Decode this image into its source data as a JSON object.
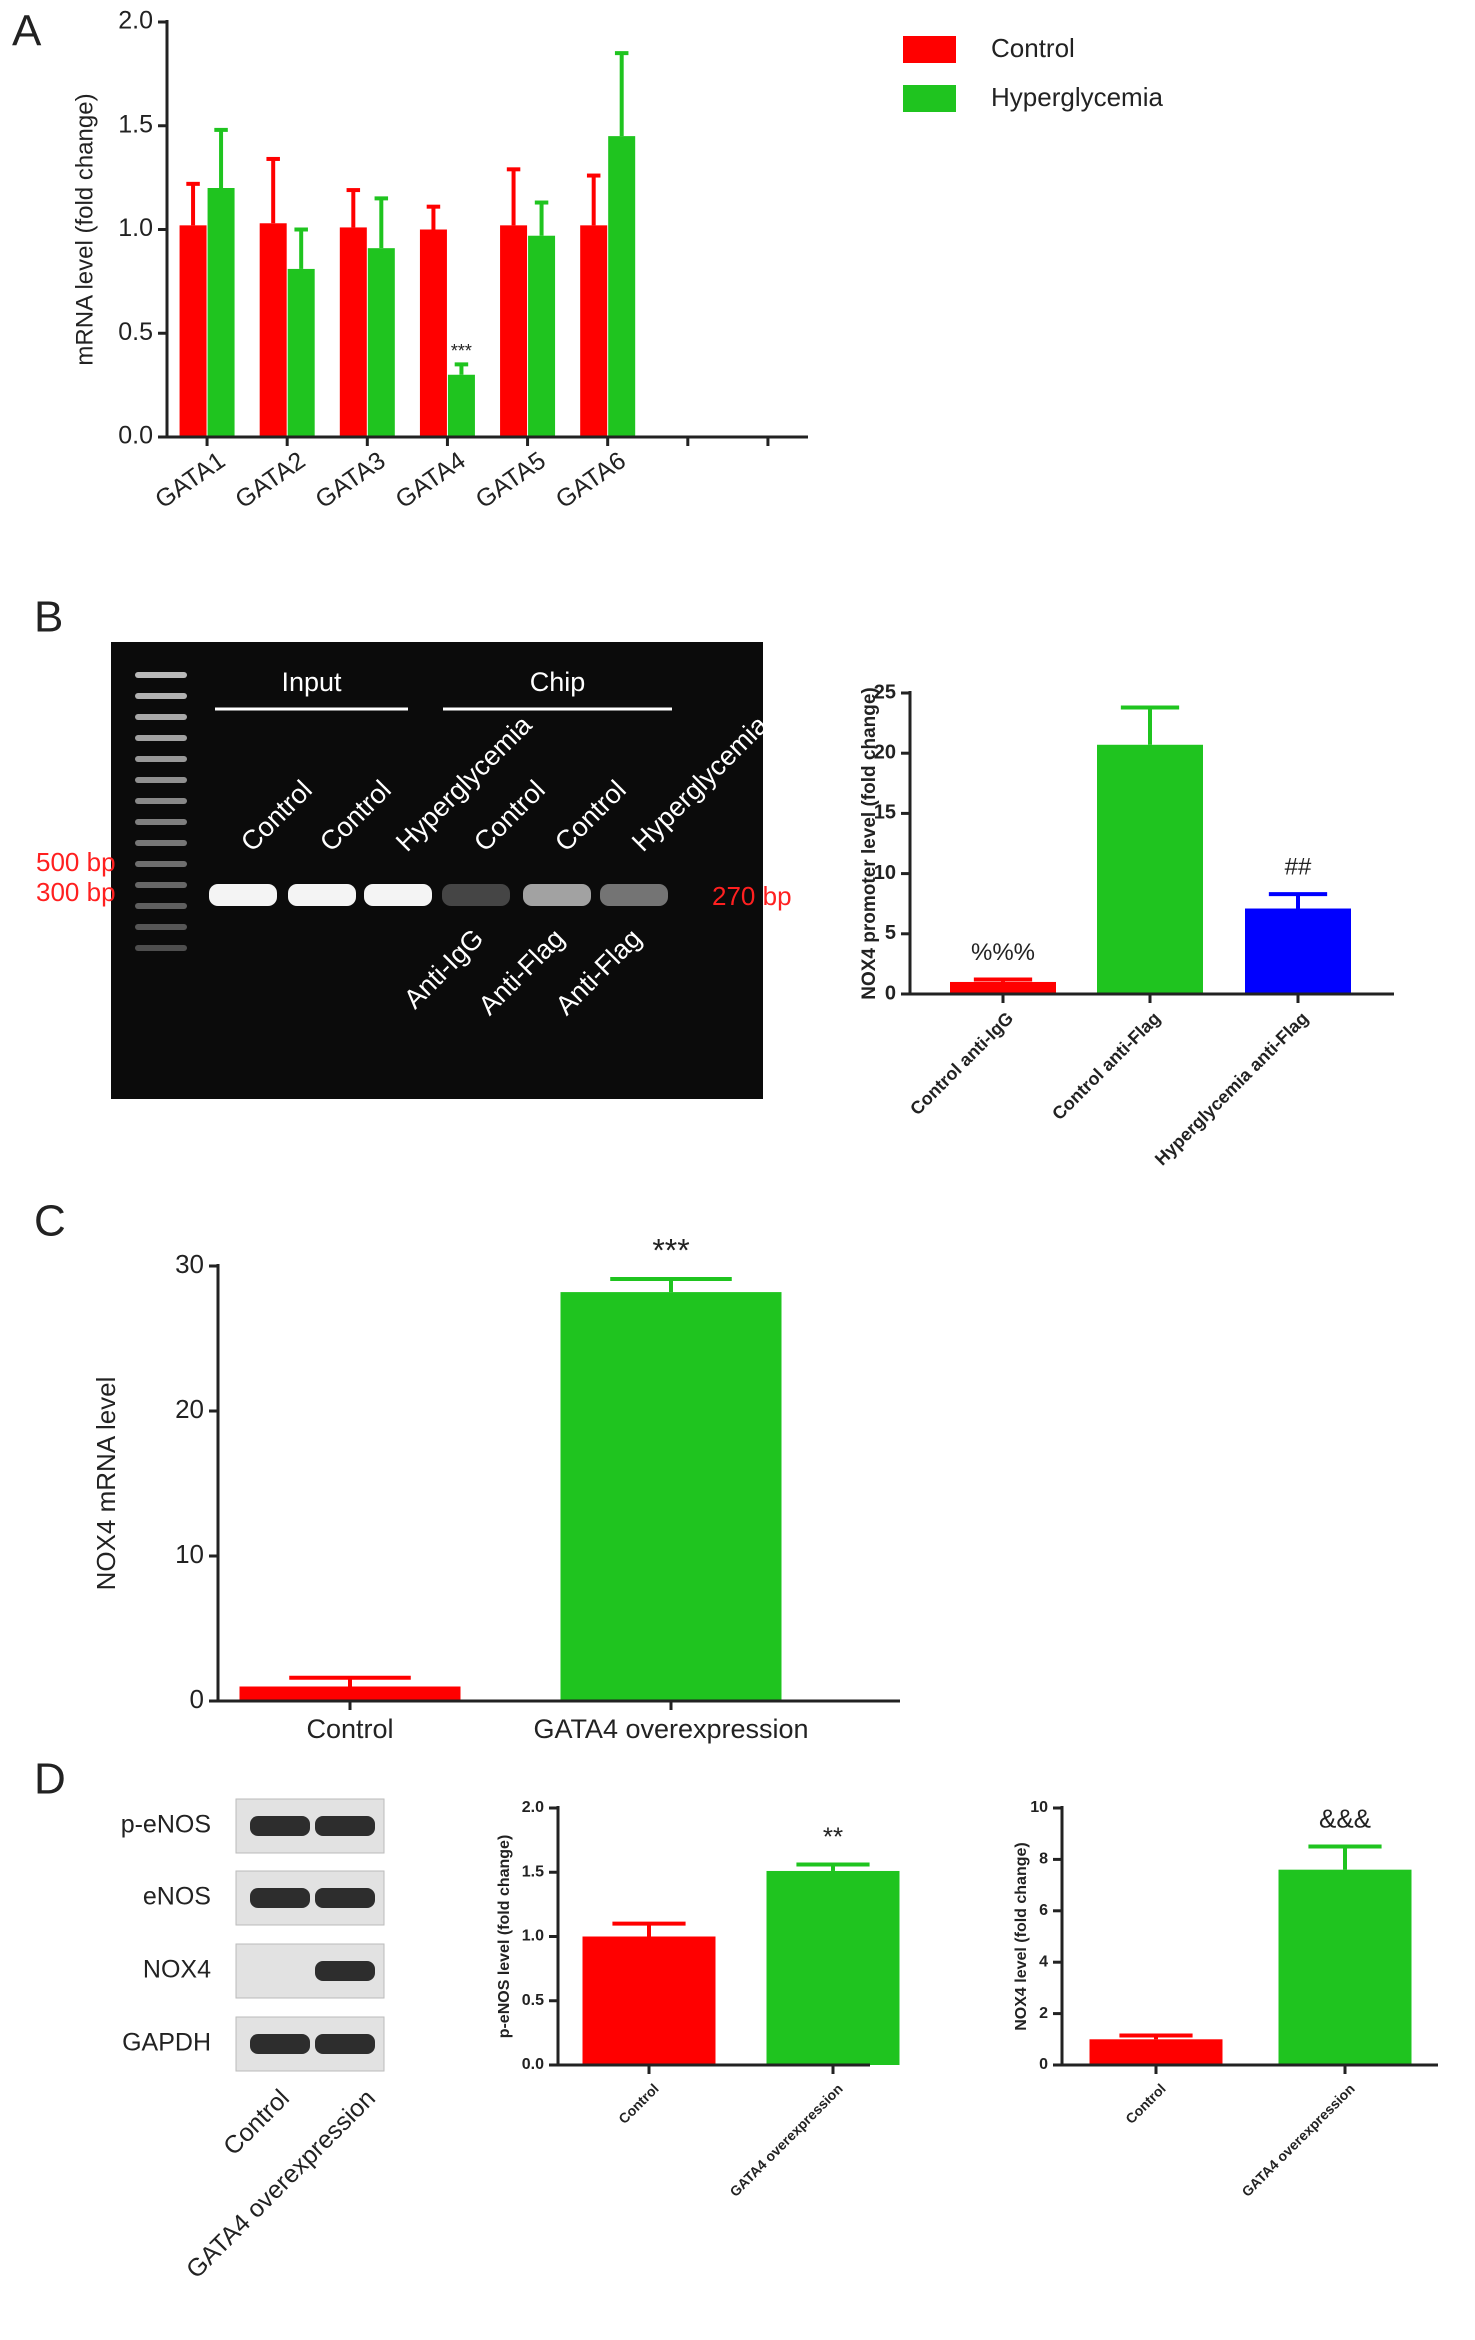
{
  "panels": [
    "A",
    "B",
    "C",
    "D"
  ],
  "gel": {
    "groups": [
      "Input",
      "Chip"
    ],
    "lanes": [
      "Control",
      "Control",
      "Hyperglycemia",
      "Control",
      "Control",
      "Hyperglycemia"
    ],
    "antibodies": [
      "Anti-IgG",
      "Anti-Flag",
      "Anti-Flag"
    ],
    "markers": [
      "500 bp",
      "300 bp"
    ],
    "band_label": "270 bp"
  },
  "blot": {
    "rows": [
      "p-eNOS",
      "eNOS",
      "NOX4",
      "GAPDH"
    ],
    "lanes": [
      "Control",
      "GATA4 overexpression"
    ]
  },
  "chart_data": [
    {
      "type": "grouped_bar",
      "ylabel": "mRNA level (fold change)",
      "categories": [
        "GATA1",
        "GATA2",
        "GATA3",
        "GATA4",
        "GATA5",
        "GATA6",
        null,
        null
      ],
      "series": [
        {
          "name": "Control",
          "color": "#ff0000",
          "values": [
            1.02,
            1.03,
            1.01,
            1.0,
            1.02,
            1.02,
            null,
            null
          ],
          "errors": [
            0.2,
            0.31,
            0.18,
            0.11,
            0.27,
            0.24,
            null,
            null
          ]
        },
        {
          "name": "Hyperglycemia",
          "color": "#1fc41f",
          "values": [
            1.2,
            0.81,
            0.91,
            0.3,
            0.97,
            1.45,
            null,
            null
          ],
          "errors": [
            0.28,
            0.19,
            0.24,
            0.05,
            0.16,
            0.4,
            null,
            null
          ],
          "annotations": [
            null,
            null,
            null,
            "***",
            null,
            null,
            null,
            null
          ]
        }
      ],
      "ylim": [
        0,
        2
      ],
      "yticks": [
        {
          "value": 0,
          "label": "0.0"
        },
        0.5,
        {
          "value": 1,
          "label": "1.0"
        },
        1.5,
        {
          "value": 2,
          "label": "2.0"
        }
      ],
      "legend": "upper right"
    },
    {
      "type": "bar",
      "ylabel": "NOX4 promoter level (fold change)",
      "categories": [
        "Control anti-IgG",
        "Control anti-Flag",
        "Hyperglycemia anti-Flag"
      ],
      "values": [
        1.0,
        20.7,
        7.1
      ],
      "errors": [
        0.2,
        3.1,
        1.2
      ],
      "colors": [
        "#ff0000",
        "#1fc41f",
        "#0000ff"
      ],
      "annotations": [
        "%%%",
        null,
        "##"
      ],
      "ylim": [
        0,
        25
      ],
      "yticks": [
        0,
        5,
        10,
        15,
        20,
        25
      ]
    },
    {
      "type": "bar",
      "ylabel": "NOX4 mRNA level",
      "categories": [
        "Control",
        "GATA4 overexpression"
      ],
      "values": [
        1.0,
        28.2
      ],
      "errors": [
        0.6,
        0.9
      ],
      "colors": [
        "#ff0000",
        "#1fc41f"
      ],
      "annotations": [
        null,
        "***"
      ],
      "ylim": [
        0,
        30
      ],
      "yticks": [
        0,
        10,
        20,
        30
      ]
    },
    {
      "type": "bar",
      "ylabel": "p-eNOS level (fold change)",
      "categories": [
        "Control",
        "GATA4 overexpression"
      ],
      "values": [
        1.0,
        1.51
      ],
      "errors": [
        0.1,
        0.05
      ],
      "colors": [
        "#ff0000",
        "#1fc41f"
      ],
      "annotations": [
        null,
        "**"
      ],
      "ylim": [
        0,
        2
      ],
      "yticks": [
        {
          "value": 0,
          "label": "0.0"
        },
        0.5,
        {
          "value": 1,
          "label": "1.0"
        },
        1.5,
        {
          "value": 2,
          "label": "2.0"
        }
      ]
    },
    {
      "type": "bar",
      "ylabel": "NOX4 level (fold change)",
      "categories": [
        "Control",
        "GATA4 overexpression"
      ],
      "values": [
        1.0,
        7.6
      ],
      "errors": [
        0.15,
        0.9
      ],
      "colors": [
        "#ff0000",
        "#1fc41f"
      ],
      "annotations": [
        null,
        "&&&"
      ],
      "ylim": [
        0,
        10
      ],
      "yticks": [
        0,
        2,
        4,
        6,
        8,
        10
      ]
    }
  ]
}
